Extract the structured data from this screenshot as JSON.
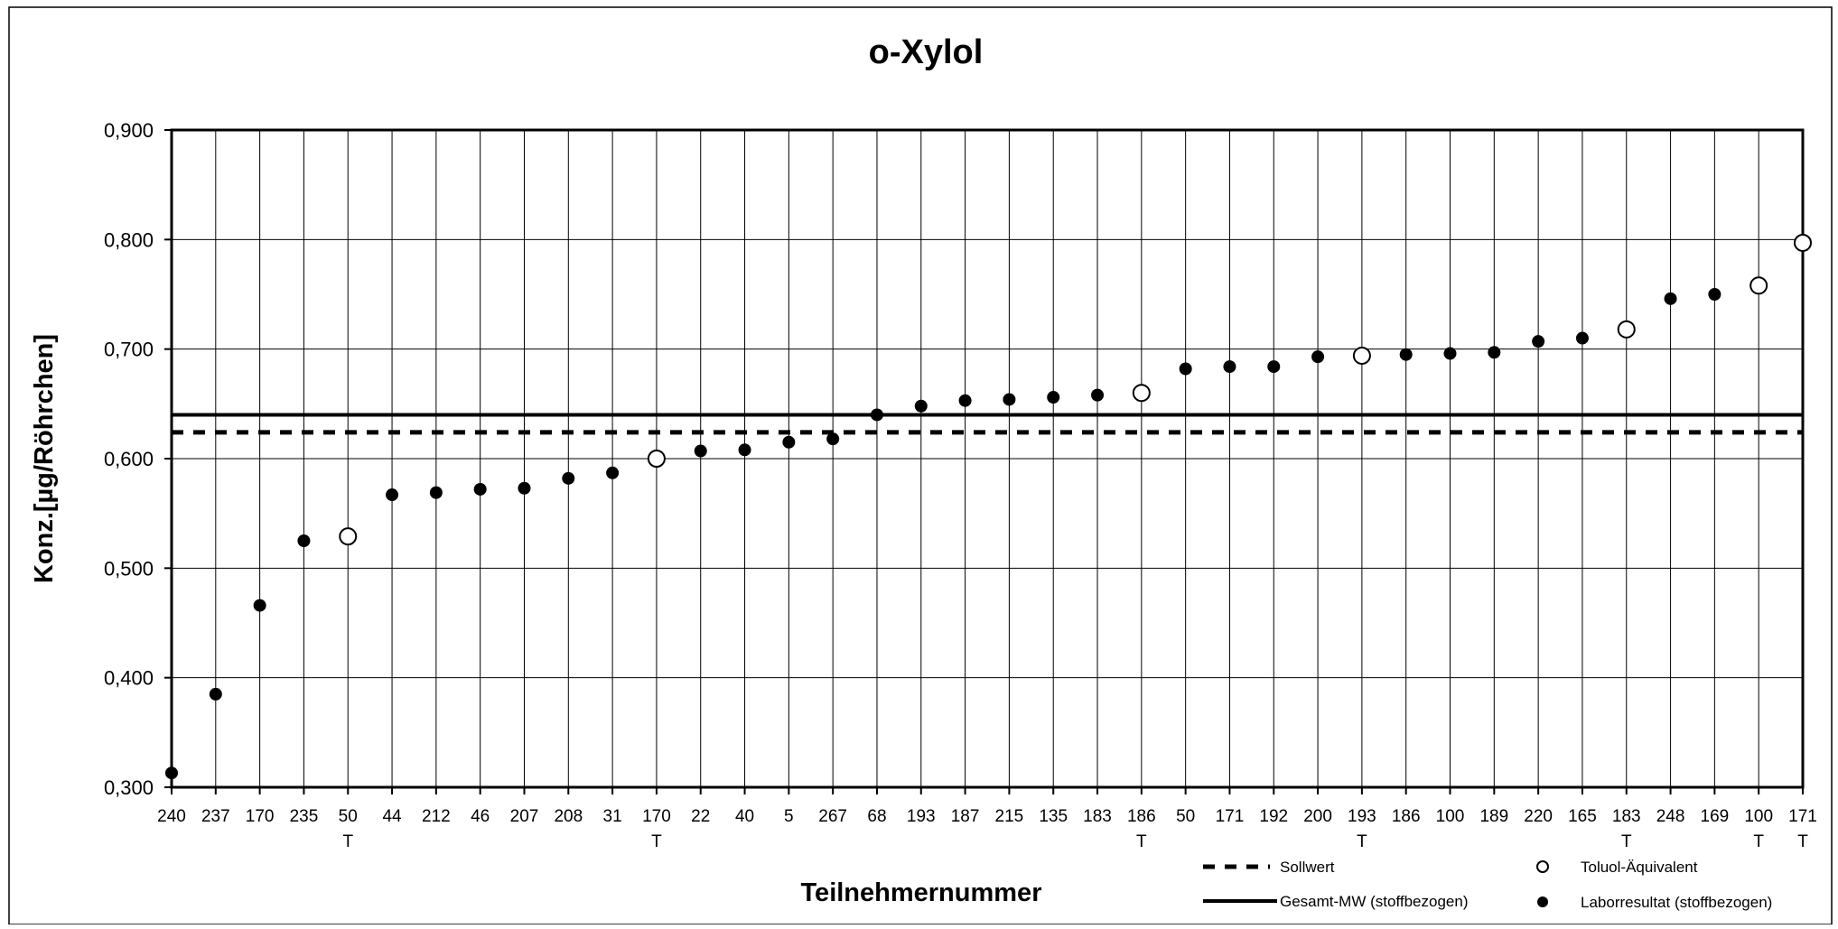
{
  "chart_data": {
    "type": "scatter",
    "title": "o-Xylol",
    "xlabel": "Teilnehmernummer",
    "ylabel": "Konz.[µg/Röhrchen]",
    "ylim": [
      0.3,
      0.9
    ],
    "yticks": [
      "0,300",
      "0,400",
      "0,500",
      "0,600",
      "0,700",
      "0,800",
      "0,900"
    ],
    "ytick_values": [
      0.3,
      0.4,
      0.5,
      0.6,
      0.7,
      0.8,
      0.9
    ],
    "grid": true,
    "categories": [
      "240",
      "237",
      "170",
      "235",
      "50",
      "44",
      "212",
      "46",
      "207",
      "208",
      "31",
      "170",
      "22",
      "40",
      "5",
      "267",
      "68",
      "193",
      "187",
      "215",
      "135",
      "183",
      "186",
      "50",
      "171",
      "192",
      "200",
      "193",
      "186",
      "100",
      "189",
      "220",
      "165",
      "183",
      "248",
      "169",
      "100",
      "171"
    ],
    "sublabels": [
      "",
      "",
      "",
      "",
      "T",
      "",
      "",
      "",
      "",
      "",
      "",
      "T",
      "",
      "",
      "",
      "",
      "",
      "",
      "",
      "",
      "",
      "",
      "T",
      "",
      "",
      "",
      "",
      "T",
      "",
      "",
      "",
      "",
      "",
      "T",
      "",
      "",
      "T",
      "T"
    ],
    "values": [
      0.313,
      0.385,
      0.466,
      0.525,
      0.529,
      0.567,
      0.569,
      0.572,
      0.573,
      0.582,
      0.587,
      0.6,
      0.607,
      0.608,
      0.615,
      0.618,
      0.64,
      0.648,
      0.653,
      0.654,
      0.656,
      0.658,
      0.66,
      0.682,
      0.684,
      0.684,
      0.693,
      0.694,
      0.695,
      0.696,
      0.697,
      0.707,
      0.71,
      0.718,
      0.746,
      0.75,
      0.758,
      0.797
    ],
    "marker_types": [
      "lab",
      "lab",
      "lab",
      "lab",
      "toluol",
      "lab",
      "lab",
      "lab",
      "lab",
      "lab",
      "lab",
      "toluol",
      "lab",
      "lab",
      "lab",
      "lab",
      "lab",
      "lab",
      "lab",
      "lab",
      "lab",
      "lab",
      "toluol",
      "lab",
      "lab",
      "lab",
      "lab",
      "toluol",
      "lab",
      "lab",
      "lab",
      "lab",
      "lab",
      "toluol",
      "lab",
      "lab",
      "toluol",
      "toluol"
    ],
    "reference_lines": [
      {
        "name": "Sollwert",
        "value": 0.624,
        "style": "dashed"
      },
      {
        "name": "Gesamt-MW (stoffbezogen)",
        "value": 0.64,
        "style": "solid"
      }
    ],
    "legend": {
      "sollwert": "Sollwert",
      "gesamt": "Gesamt-MW (stoffbezogen)",
      "toluol": "Toluol-Äquivalent",
      "labor": "Laborresultat (stoffbezogen)"
    },
    "legend_position": "bottom-right"
  }
}
